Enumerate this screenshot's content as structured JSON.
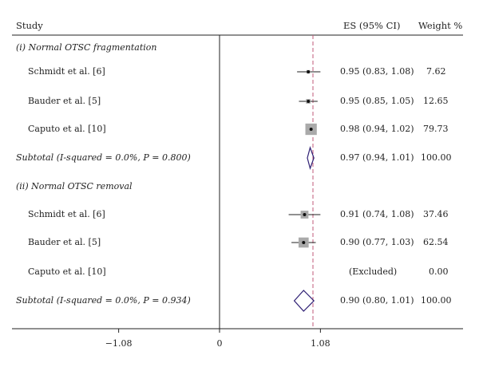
{
  "chart_data": {
    "type": "forest",
    "headers": {
      "study": "Study",
      "es": "ES (95% CI)",
      "weight": "Weight %"
    },
    "groups": [
      {
        "label": "(i) Normal OTSC fragmentation",
        "rows": [
          {
            "study": "Schmidt et al. [6]",
            "es": 0.95,
            "lo": 0.83,
            "hi": 1.08,
            "es_text": "0.95 (0.83, 1.08)",
            "weight": 7.62,
            "weight_text": "7.62"
          },
          {
            "study": "Bauder et al. [5]",
            "es": 0.95,
            "lo": 0.85,
            "hi": 1.05,
            "es_text": "0.95 (0.85, 1.05)",
            "weight": 12.65,
            "weight_text": "12.65"
          },
          {
            "study": "Caputo et al. [10]",
            "es": 0.98,
            "lo": 0.94,
            "hi": 1.02,
            "es_text": "0.98 (0.94, 1.02)",
            "weight": 79.73,
            "weight_text": "79.73"
          }
        ],
        "subtotal": {
          "label": "Subtotal (I-squared = 0.0%, P = 0.800)",
          "es": 0.97,
          "lo": 0.94,
          "hi": 1.01,
          "es_text": "0.97 (0.94, 1.01)",
          "weight_text": "100.00"
        }
      },
      {
        "label": "(ii) Normal OTSC removal",
        "rows": [
          {
            "study": "Schmidt et al. [6]",
            "es": 0.91,
            "lo": 0.74,
            "hi": 1.08,
            "es_text": "0.91 (0.74, 1.08)",
            "weight": 37.46,
            "weight_text": "37.46"
          },
          {
            "study": "Bauder et al. [5]",
            "es": 0.9,
            "lo": 0.77,
            "hi": 1.03,
            "es_text": "0.90 (0.77, 1.03)",
            "weight": 62.54,
            "weight_text": "62.54"
          },
          {
            "study": "Caputo et al. [10]",
            "es": null,
            "lo": null,
            "hi": null,
            "es_text": "(Excluded)",
            "weight": 0,
            "weight_text": "0.00"
          }
        ],
        "subtotal": {
          "label": "Subtotal (I-squared = 0.0%, P = 0.934)",
          "es": 0.9,
          "lo": 0.8,
          "hi": 1.01,
          "es_text": "0.90 (0.80, 1.01)",
          "weight_text": "100.00"
        }
      }
    ],
    "axis": {
      "ticks": [
        -1.08,
        0,
        1.08
      ],
      "tick_labels": [
        "−1.08",
        "0",
        "1.08"
      ],
      "xlim": [
        -1.08,
        1.08
      ],
      "reference_line": 1,
      "null_line": 0
    },
    "colors": {
      "reference_line": "#c0587a",
      "diamond": "#2d1e73",
      "weight_box": "#aaaaaa",
      "text": "#222222"
    }
  }
}
